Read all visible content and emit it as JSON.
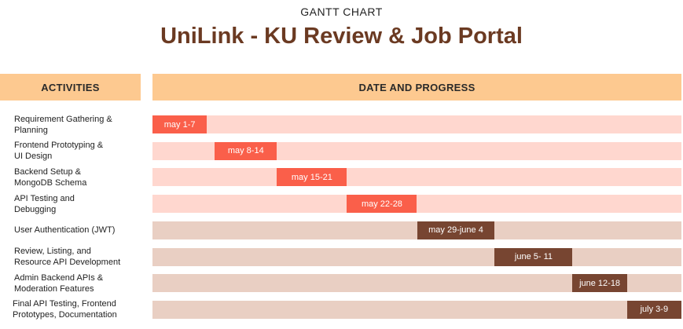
{
  "header": {
    "supertitle": "GANTT CHART",
    "title": "UniLink - KU Review & Job Portal",
    "activities_label": "ACTIVITIES",
    "date_label": "DATE AND PROGRESS"
  },
  "colors": {
    "title": "#6b3a22",
    "header_bg": "#fdc990",
    "phase1_track": "#ffd7cf",
    "phase1_bar": "#fa5f4a",
    "phase2_track": "#e9cfc3",
    "phase2_bar": "#774531"
  },
  "chart_data": {
    "type": "gantt",
    "x_unit": "days from May 1",
    "x_range": [
      1,
      69
    ],
    "tasks": [
      {
        "activity": [
          "Requirement Gathering &",
          "Planning"
        ],
        "label": "may 1-7",
        "start": 1,
        "end": 8,
        "phase": 1
      },
      {
        "activity": [
          "Frontend Prototyping &",
          "UI Design"
        ],
        "label": "may 8-14",
        "start": 9,
        "end": 17,
        "phase": 1
      },
      {
        "activity": [
          "Backend Setup &",
          "MongoDB Schema"
        ],
        "label": "may 15-21",
        "start": 17,
        "end": 26,
        "phase": 1
      },
      {
        "activity": [
          "API Testing and",
          "Debugging"
        ],
        "label": "may 22-28",
        "start": 26,
        "end": 35,
        "phase": 1
      },
      {
        "activity": [
          "User Authentication (JWT)"
        ],
        "label": "may 29-june 4",
        "start": 35,
        "end": 45,
        "phase": 2
      },
      {
        "activity": [
          "Review, Listing, and",
          "Resource API Development"
        ],
        "label": "june 5- 11",
        "start": 45,
        "end": 55,
        "phase": 2
      },
      {
        "activity": [
          "Admin Backend APIs &",
          "Moderation Features"
        ],
        "label": "june 12-18",
        "start": 55,
        "end": 62,
        "phase": 2
      },
      {
        "activity": [
          "Final API Testing, Frontend",
          "Prototypes, Documentation"
        ],
        "label": "july 3-9",
        "start": 62,
        "end": 69,
        "phase": 2
      }
    ]
  }
}
